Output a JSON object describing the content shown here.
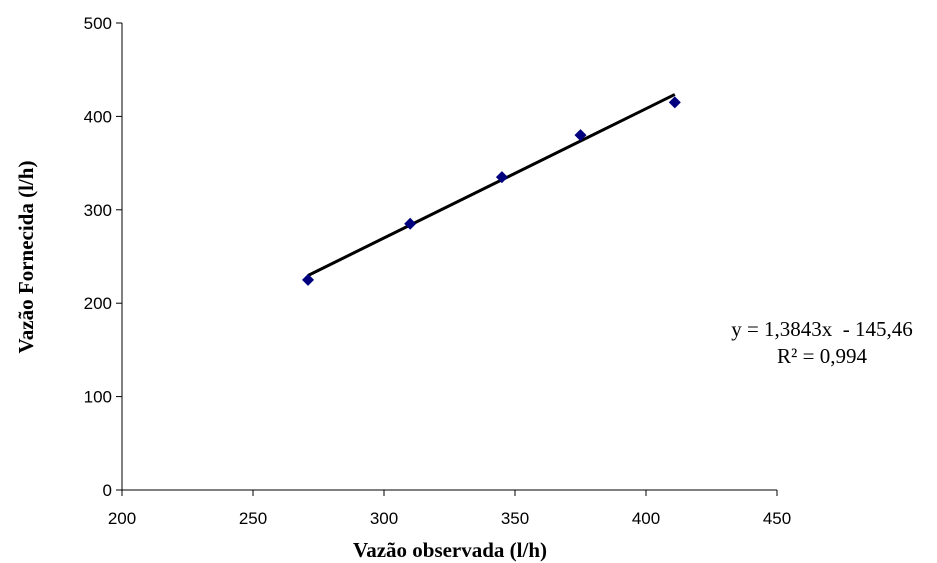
{
  "chart_data": {
    "type": "scatter",
    "title": "",
    "xlabel": "Vazão observada (l/h)",
    "ylabel": "Vazão Fornecida (l/h)",
    "xlim": [
      200,
      450
    ],
    "ylim": [
      0,
      500
    ],
    "x_ticks": [
      "200",
      "250",
      "300",
      "350",
      "400",
      "450"
    ],
    "y_ticks": [
      "0",
      "100",
      "200",
      "300",
      "400",
      "500"
    ],
    "grid": false,
    "series": [
      {
        "marker": "diamond",
        "color": "#00007f",
        "points": [
          {
            "x": 271,
            "y": 225
          },
          {
            "x": 310,
            "y": 285
          },
          {
            "x": 345,
            "y": 335
          },
          {
            "x": 375,
            "y": 380
          },
          {
            "x": 411,
            "y": 415
          }
        ]
      }
    ],
    "trendline": {
      "type": "linear",
      "slope": 1.3843,
      "intercept": -145.46,
      "x_range": [
        271,
        411
      ],
      "color": "#000000"
    },
    "annotations": {
      "equation": "y = 1,3843x  - 145,46",
      "r_squared": "R² = 0,994"
    }
  }
}
